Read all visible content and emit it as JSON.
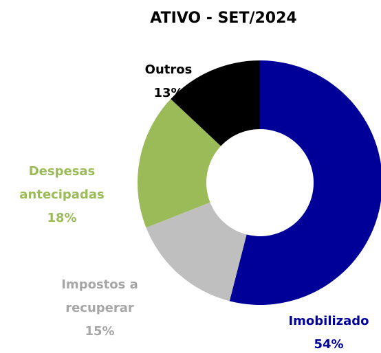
{
  "chart_data": {
    "type": "donut",
    "title": "ATIVO - SET/2024",
    "categories": [
      "Imobilizado",
      "Impostos a recuperar",
      "Despesas antecipadas",
      "Outros"
    ],
    "values": [
      54,
      15,
      18,
      13
    ],
    "value_labels": [
      "54%",
      "15%",
      "18%",
      "13%"
    ],
    "colors": [
      "#000099",
      "#bfbfbf",
      "#9bbb59",
      "#000000"
    ],
    "label_colors": [
      "#000099",
      "#a6a6a6",
      "#9bbb59",
      "#000000"
    ]
  }
}
